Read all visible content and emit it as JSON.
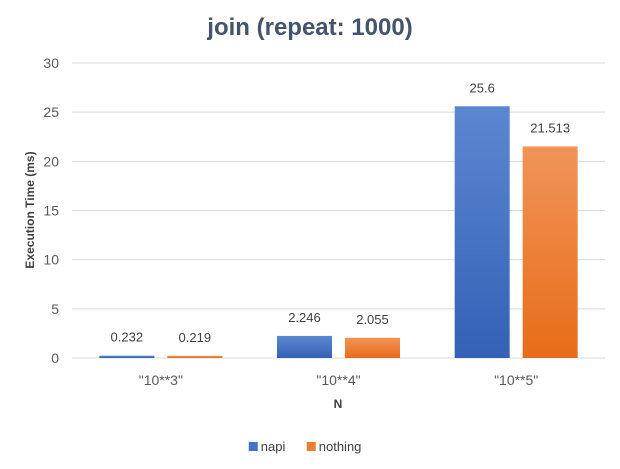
{
  "chart_data": {
    "type": "bar",
    "title": "join (repeat: 1000)",
    "xlabel": "N",
    "ylabel": "Execution Time (ms)",
    "categories": [
      "\"10**3\"",
      "\"10**4\"",
      "\"10**5\""
    ],
    "ylim": [
      0,
      30
    ],
    "yticks": [
      0,
      5,
      10,
      15,
      20,
      25,
      30
    ],
    "grid": true,
    "legend_position": "bottom",
    "series": [
      {
        "name": "napi",
        "values": [
          0.232,
          2.246,
          25.6
        ],
        "labels": [
          "0.232",
          "2.246",
          "25.6"
        ],
        "color": "#4472c4"
      },
      {
        "name": "nothing",
        "values": [
          0.219,
          2.055,
          21.513
        ],
        "labels": [
          "0.219",
          "2.055",
          "21.513"
        ],
        "color": "#ed7d31"
      }
    ]
  }
}
